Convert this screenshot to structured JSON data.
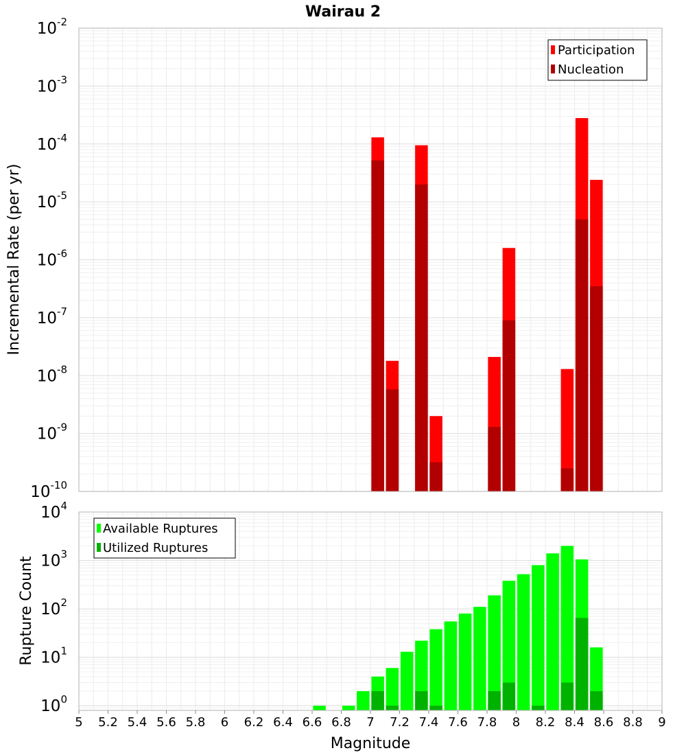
{
  "chart_data": [
    {
      "type": "bar",
      "title": "Wairau 2",
      "xlabel": "",
      "ylabel": "Incremental Rate (per yr)",
      "yscale": "log",
      "ylim": [
        1e-10,
        0.01
      ],
      "xlim": [
        5,
        9
      ],
      "grid": true,
      "legend": "top-right",
      "y_ticks": [
        {
          "base": "10",
          "exp": "-2"
        },
        {
          "base": "10",
          "exp": "-3"
        },
        {
          "base": "10",
          "exp": "-4"
        },
        {
          "base": "10",
          "exp": "-5"
        },
        {
          "base": "10",
          "exp": "-6"
        },
        {
          "base": "10",
          "exp": "-7"
        },
        {
          "base": "10",
          "exp": "-8"
        },
        {
          "base": "10",
          "exp": "-9"
        },
        {
          "base": "10",
          "exp": "-10"
        }
      ],
      "series": [
        {
          "name": "Participation",
          "color": "#ff0000",
          "points": [
            {
              "x": 7.05,
              "y": 0.00013
            },
            {
              "x": 7.15,
              "y": 1.8e-08
            },
            {
              "x": 7.35,
              "y": 9.5e-05
            },
            {
              "x": 7.45,
              "y": 2e-09
            },
            {
              "x": 7.85,
              "y": 2.1e-08
            },
            {
              "x": 7.95,
              "y": 1.6e-06
            },
            {
              "x": 8.35,
              "y": 1.3e-08
            },
            {
              "x": 8.45,
              "y": 0.00028
            },
            {
              "x": 8.55,
              "y": 2.4e-05
            }
          ]
        },
        {
          "name": "Nucleation",
          "color": "#b20000",
          "points": [
            {
              "x": 7.05,
              "y": 5.2e-05
            },
            {
              "x": 7.15,
              "y": 5.8e-09
            },
            {
              "x": 7.35,
              "y": 2e-05
            },
            {
              "x": 7.45,
              "y": 3.2e-10
            },
            {
              "x": 7.85,
              "y": 1.3e-09
            },
            {
              "x": 7.95,
              "y": 9e-08
            },
            {
              "x": 8.35,
              "y": 2.5e-10
            },
            {
              "x": 8.45,
              "y": 5e-06
            },
            {
              "x": 8.55,
              "y": 3.5e-07
            }
          ]
        }
      ]
    },
    {
      "type": "bar",
      "title": "",
      "xlabel": "Magnitude",
      "ylabel": "Rupture Count",
      "yscale": "log",
      "ylim": [
        0.8,
        10000
      ],
      "xlim": [
        5,
        9
      ],
      "grid": true,
      "legend": "top-left",
      "y_ticks": [
        {
          "base": "10",
          "exp": "4"
        },
        {
          "base": "10",
          "exp": "3"
        },
        {
          "base": "10",
          "exp": "2"
        },
        {
          "base": "10",
          "exp": "1"
        },
        {
          "base": "10",
          "exp": "0"
        }
      ],
      "x_ticks": [
        "5",
        "5.2",
        "5.4",
        "5.6",
        "5.8",
        "6",
        "6.2",
        "6.4",
        "6.6",
        "6.8",
        "7",
        "7.2",
        "7.4",
        "7.6",
        "7.8",
        "8",
        "8.2",
        "8.4",
        "8.6",
        "8.8",
        "9"
      ],
      "series": [
        {
          "name": "Available Ruptures",
          "color": "#00ff00",
          "points": [
            {
              "x": 6.65,
              "y": 1
            },
            {
              "x": 6.85,
              "y": 1
            },
            {
              "x": 6.95,
              "y": 2
            },
            {
              "x": 7.05,
              "y": 4
            },
            {
              "x": 7.15,
              "y": 6
            },
            {
              "x": 7.25,
              "y": 13
            },
            {
              "x": 7.35,
              "y": 22
            },
            {
              "x": 7.45,
              "y": 38
            },
            {
              "x": 7.55,
              "y": 55
            },
            {
              "x": 7.65,
              "y": 80
            },
            {
              "x": 7.75,
              "y": 110
            },
            {
              "x": 7.85,
              "y": 190
            },
            {
              "x": 7.95,
              "y": 380
            },
            {
              "x": 8.05,
              "y": 520
            },
            {
              "x": 8.15,
              "y": 800
            },
            {
              "x": 8.25,
              "y": 1400
            },
            {
              "x": 8.35,
              "y": 2000
            },
            {
              "x": 8.45,
              "y": 1050
            },
            {
              "x": 8.55,
              "y": 16
            }
          ]
        },
        {
          "name": "Utilized Ruptures",
          "color": "#00b200",
          "points": [
            {
              "x": 7.05,
              "y": 2
            },
            {
              "x": 7.15,
              "y": 1
            },
            {
              "x": 7.35,
              "y": 2
            },
            {
              "x": 7.45,
              "y": 1
            },
            {
              "x": 7.85,
              "y": 2
            },
            {
              "x": 7.95,
              "y": 3
            },
            {
              "x": 8.15,
              "y": 1
            },
            {
              "x": 8.35,
              "y": 3
            },
            {
              "x": 8.45,
              "y": 65
            },
            {
              "x": 8.55,
              "y": 2
            }
          ]
        }
      ]
    }
  ]
}
